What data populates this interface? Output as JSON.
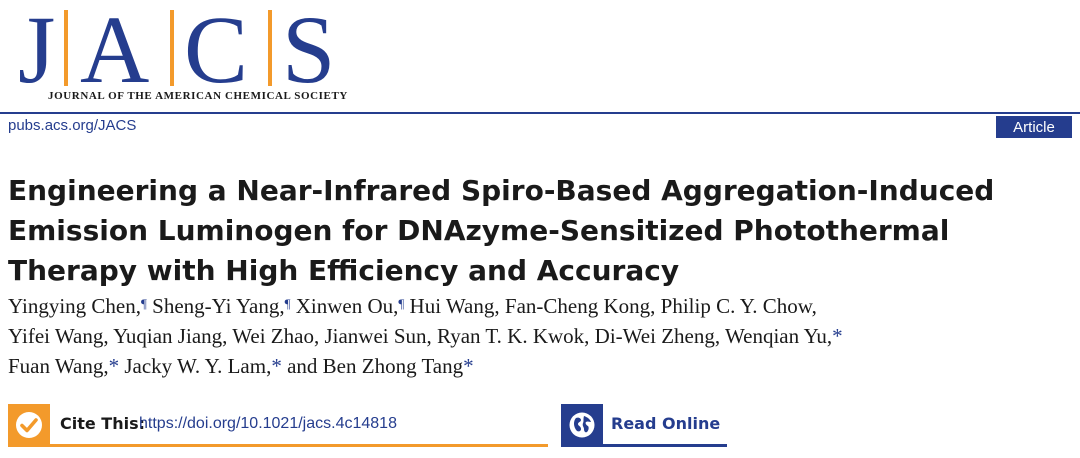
{
  "journal": {
    "logo_letters": [
      "J",
      "A",
      "C",
      "S"
    ],
    "full_name": "JOURNAL OF THE AMERICAN CHEMICAL SOCIETY",
    "url": "pubs.acs.org/JACS",
    "article_type": "Article",
    "brand_color": "#253D8E",
    "accent_color": "#F39A2B"
  },
  "paper": {
    "title_lines": [
      "Engineering a Near-Infrared Spiro-Based Aggregation-Induced",
      "Emission Luminogen for DNAzyme-Sensitized Photothermal",
      "Therapy with High Efficiency and Accuracy"
    ],
    "authors": [
      {
        "name": "Yingying Chen",
        "mark": "¶"
      },
      {
        "name": "Sheng-Yi Yang",
        "mark": "¶"
      },
      {
        "name": "Xinwen Ou",
        "mark": "¶"
      },
      {
        "name": "Hui Wang",
        "mark": ""
      },
      {
        "name": "Fan-Cheng Kong",
        "mark": ""
      },
      {
        "name": "Philip C. Y. Chow",
        "mark": ""
      },
      {
        "name": "Yifei Wang",
        "mark": ""
      },
      {
        "name": "Yuqian Jiang",
        "mark": ""
      },
      {
        "name": "Wei Zhao",
        "mark": ""
      },
      {
        "name": "Jianwei Sun",
        "mark": ""
      },
      {
        "name": "Ryan T. K. Kwok",
        "mark": ""
      },
      {
        "name": "Di-Wei Zheng",
        "mark": ""
      },
      {
        "name": "Wenqian Yu",
        "mark": "*"
      },
      {
        "name": "Fuan Wang",
        "mark": "*"
      },
      {
        "name": "Jacky W. Y. Lam",
        "mark": "*"
      },
      {
        "name": "Ben Zhong Tang",
        "mark": "*"
      }
    ],
    "author_conjunction": "and"
  },
  "cite": {
    "label": "Cite This:",
    "doi": "https://doi.org/10.1021/jacs.4c14818",
    "icon": "checkmark-icon"
  },
  "read": {
    "label": "Read Online",
    "icon": "globe-icon"
  }
}
